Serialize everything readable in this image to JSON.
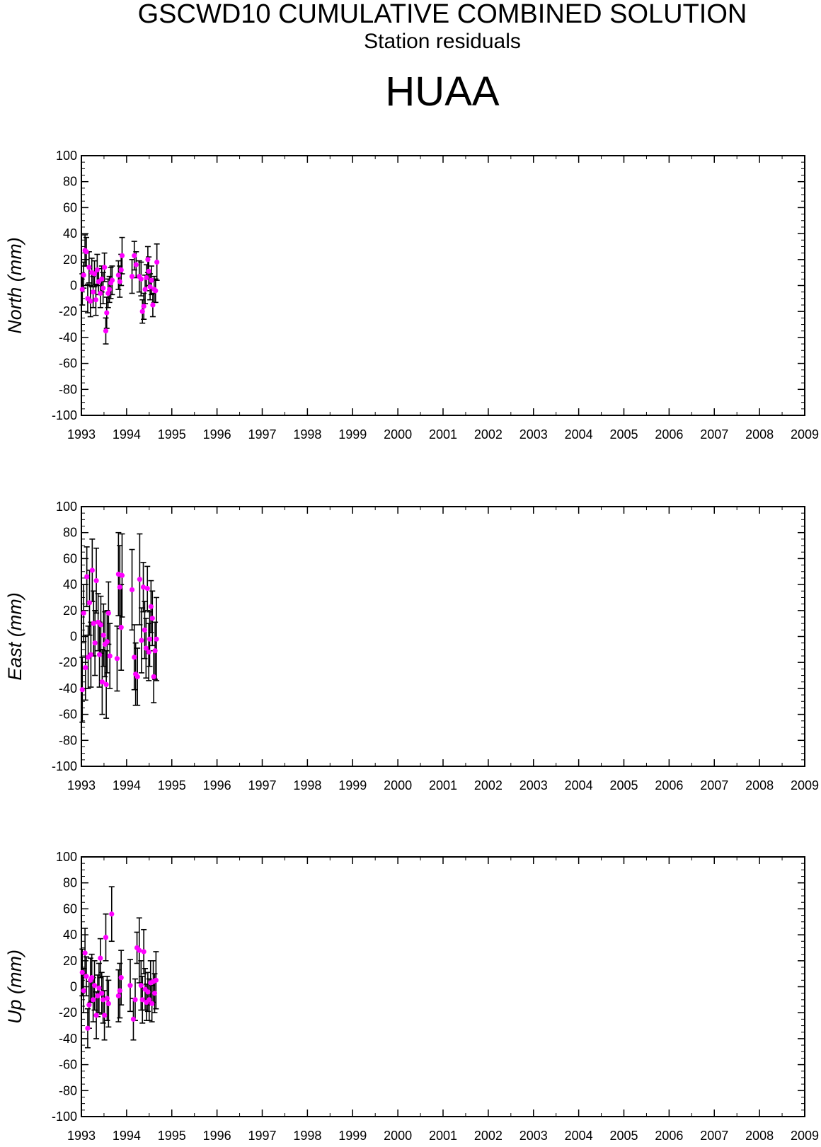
{
  "header": {
    "title": "GSCWD10 CUMULATIVE COMBINED SOLUTION",
    "subtitle": "Station residuals",
    "station": "HUAA"
  },
  "colors": {
    "point": "#ff00ff",
    "errorbar": "#000000",
    "axis": "#000000"
  },
  "chart_data": [
    {
      "type": "scatter",
      "ylabel": "North (mm)",
      "xlim": [
        1993,
        2009
      ],
      "ylim": [
        -100,
        100
      ],
      "xticks": [
        "1993",
        "1994",
        "1995",
        "1996",
        "1997",
        "1998",
        "1999",
        "2000",
        "2001",
        "2002",
        "2003",
        "2004",
        "2005",
        "2006",
        "2007",
        "2008",
        "2009"
      ],
      "yticks": [
        "100",
        "80",
        "60",
        "40",
        "20",
        "0",
        "-20",
        "-40",
        "-60",
        "-80",
        "-100"
      ],
      "grid": false,
      "points": [
        {
          "x": 1993.02,
          "y": -3,
          "err": 12
        },
        {
          "x": 1993.05,
          "y": 8,
          "err": 10
        },
        {
          "x": 1993.08,
          "y": 27,
          "err": 12
        },
        {
          "x": 1993.11,
          "y": 26,
          "err": 11
        },
        {
          "x": 1993.14,
          "y": -10,
          "err": 11
        },
        {
          "x": 1993.17,
          "y": 14,
          "err": 12
        },
        {
          "x": 1993.2,
          "y": -12,
          "err": 12
        },
        {
          "x": 1993.23,
          "y": 10,
          "err": 11
        },
        {
          "x": 1993.26,
          "y": -5,
          "err": 12
        },
        {
          "x": 1993.29,
          "y": 9,
          "err": 10
        },
        {
          "x": 1993.32,
          "y": -11,
          "err": 12
        },
        {
          "x": 1993.35,
          "y": 12,
          "err": 12
        },
        {
          "x": 1993.38,
          "y": 3,
          "err": 10
        },
        {
          "x": 1993.42,
          "y": -6,
          "err": 11
        },
        {
          "x": 1993.45,
          "y": 5,
          "err": 10
        },
        {
          "x": 1993.48,
          "y": -2,
          "err": 12
        },
        {
          "x": 1993.51,
          "y": 14,
          "err": 11
        },
        {
          "x": 1993.54,
          "y": -35,
          "err": 10
        },
        {
          "x": 1993.56,
          "y": -21,
          "err": 12
        },
        {
          "x": 1993.59,
          "y": -6,
          "err": 11
        },
        {
          "x": 1993.62,
          "y": -3,
          "err": 10
        },
        {
          "x": 1993.65,
          "y": 2,
          "err": 12
        },
        {
          "x": 1993.68,
          "y": 4,
          "err": 11
        },
        {
          "x": 1993.82,
          "y": 8,
          "err": 11
        },
        {
          "x": 1993.85,
          "y": 3,
          "err": 12
        },
        {
          "x": 1993.88,
          "y": 12,
          "err": 12
        },
        {
          "x": 1993.9,
          "y": 23,
          "err": 14
        },
        {
          "x": 1994.12,
          "y": 7,
          "err": 13
        },
        {
          "x": 1994.17,
          "y": 23,
          "err": 11
        },
        {
          "x": 1994.21,
          "y": 16,
          "err": 10
        },
        {
          "x": 1994.28,
          "y": 7,
          "err": 12
        },
        {
          "x": 1994.32,
          "y": 5,
          "err": 13
        },
        {
          "x": 1994.35,
          "y": -20,
          "err": 9
        },
        {
          "x": 1994.38,
          "y": -16,
          "err": 10
        },
        {
          "x": 1994.41,
          "y": -3,
          "err": 11
        },
        {
          "x": 1994.44,
          "y": 6,
          "err": 10
        },
        {
          "x": 1994.47,
          "y": 20,
          "err": 10
        },
        {
          "x": 1994.49,
          "y": 11,
          "err": 11
        },
        {
          "x": 1994.52,
          "y": -1,
          "err": 10
        },
        {
          "x": 1994.55,
          "y": 4,
          "err": 11
        },
        {
          "x": 1994.58,
          "y": -15,
          "err": 9
        },
        {
          "x": 1994.61,
          "y": -3,
          "err": 10
        },
        {
          "x": 1994.64,
          "y": -4,
          "err": 9
        },
        {
          "x": 1994.67,
          "y": 18,
          "err": 14
        }
      ]
    },
    {
      "type": "scatter",
      "ylabel": "East (mm)",
      "xlim": [
        1993,
        2009
      ],
      "ylim": [
        -100,
        100
      ],
      "xticks": [
        "1993",
        "1994",
        "1995",
        "1996",
        "1997",
        "1998",
        "1999",
        "2000",
        "2001",
        "2002",
        "2003",
        "2004",
        "2005",
        "2006",
        "2007",
        "2008",
        "2009"
      ],
      "yticks": [
        "100",
        "80",
        "60",
        "40",
        "20",
        "0",
        "-20",
        "-40",
        "-60",
        "-80",
        "-100"
      ],
      "grid": false,
      "points": [
        {
          "x": 1993.02,
          "y": -41,
          "err": 25
        },
        {
          "x": 1993.05,
          "y": 18,
          "err": 22
        },
        {
          "x": 1993.09,
          "y": -24,
          "err": 25
        },
        {
          "x": 1993.12,
          "y": 46,
          "err": 23
        },
        {
          "x": 1993.15,
          "y": -16,
          "err": 24
        },
        {
          "x": 1993.18,
          "y": 26,
          "err": 25
        },
        {
          "x": 1993.21,
          "y": -14,
          "err": 25
        },
        {
          "x": 1993.24,
          "y": 51,
          "err": 24
        },
        {
          "x": 1993.27,
          "y": 10,
          "err": 25
        },
        {
          "x": 1993.3,
          "y": -5,
          "err": 25
        },
        {
          "x": 1993.33,
          "y": 43,
          "err": 25
        },
        {
          "x": 1993.37,
          "y": 11,
          "err": 22
        },
        {
          "x": 1993.4,
          "y": -14,
          "err": 25
        },
        {
          "x": 1993.43,
          "y": 9,
          "err": 22
        },
        {
          "x": 1993.46,
          "y": -35,
          "err": 25
        },
        {
          "x": 1993.49,
          "y": 1,
          "err": 24
        },
        {
          "x": 1993.52,
          "y": -6,
          "err": 25
        },
        {
          "x": 1993.55,
          "y": -37,
          "err": 26
        },
        {
          "x": 1993.57,
          "y": -4,
          "err": 24
        },
        {
          "x": 1993.6,
          "y": 18,
          "err": 24
        },
        {
          "x": 1993.63,
          "y": -15,
          "err": 25
        },
        {
          "x": 1993.79,
          "y": -17,
          "err": 25
        },
        {
          "x": 1993.82,
          "y": 48,
          "err": 32
        },
        {
          "x": 1993.85,
          "y": 38,
          "err": 32
        },
        {
          "x": 1993.88,
          "y": 7,
          "err": 33
        },
        {
          "x": 1993.9,
          "y": 47,
          "err": 32
        },
        {
          "x": 1994.12,
          "y": 36,
          "err": 31
        },
        {
          "x": 1994.17,
          "y": -16,
          "err": 25
        },
        {
          "x": 1994.2,
          "y": -29,
          "err": 24
        },
        {
          "x": 1994.24,
          "y": -31,
          "err": 22
        },
        {
          "x": 1994.29,
          "y": 44,
          "err": 35
        },
        {
          "x": 1994.33,
          "y": -3,
          "err": 25
        },
        {
          "x": 1994.37,
          "y": 38,
          "err": 19
        },
        {
          "x": 1994.4,
          "y": 5,
          "err": 22
        },
        {
          "x": 1994.43,
          "y": -9,
          "err": 23
        },
        {
          "x": 1994.46,
          "y": 37,
          "err": 17
        },
        {
          "x": 1994.49,
          "y": -12,
          "err": 22
        },
        {
          "x": 1994.51,
          "y": -2,
          "err": 21
        },
        {
          "x": 1994.54,
          "y": 23,
          "err": 20
        },
        {
          "x": 1994.57,
          "y": 14,
          "err": 21
        },
        {
          "x": 1994.6,
          "y": -31,
          "err": 20
        },
        {
          "x": 1994.63,
          "y": -11,
          "err": 22
        },
        {
          "x": 1994.66,
          "y": -2,
          "err": 32
        }
      ]
    },
    {
      "type": "scatter",
      "ylabel": "Up (mm)",
      "xlim": [
        1993,
        2009
      ],
      "ylim": [
        -100,
        100
      ],
      "xticks": [
        "1993",
        "1994",
        "1995",
        "1996",
        "1997",
        "1998",
        "1999",
        "2000",
        "2001",
        "2002",
        "2003",
        "2004",
        "2005",
        "2006",
        "2007",
        "2008",
        "2009"
      ],
      "yticks": [
        "100",
        "80",
        "60",
        "40",
        "20",
        "0",
        "-20",
        "-40",
        "-60",
        "-80",
        "-100"
      ],
      "grid": false,
      "points": [
        {
          "x": 1993.02,
          "y": 11,
          "err": 18
        },
        {
          "x": 1993.05,
          "y": -3,
          "err": 17
        },
        {
          "x": 1993.08,
          "y": 26,
          "err": 19
        },
        {
          "x": 1993.11,
          "y": 8,
          "err": 15
        },
        {
          "x": 1993.14,
          "y": -32,
          "err": 15
        },
        {
          "x": 1993.17,
          "y": -14,
          "err": 18
        },
        {
          "x": 1993.2,
          "y": 5,
          "err": 17
        },
        {
          "x": 1993.23,
          "y": 7,
          "err": 18
        },
        {
          "x": 1993.26,
          "y": -10,
          "err": 17
        },
        {
          "x": 1993.29,
          "y": 1,
          "err": 19
        },
        {
          "x": 1993.33,
          "y": -22,
          "err": 18
        },
        {
          "x": 1993.36,
          "y": -7,
          "err": 16
        },
        {
          "x": 1993.39,
          "y": -1,
          "err": 19
        },
        {
          "x": 1993.42,
          "y": 22,
          "err": 15
        },
        {
          "x": 1993.45,
          "y": -5,
          "err": 16
        },
        {
          "x": 1993.48,
          "y": -10,
          "err": 18
        },
        {
          "x": 1993.51,
          "y": -22,
          "err": 19
        },
        {
          "x": 1993.54,
          "y": 38,
          "err": 18
        },
        {
          "x": 1993.57,
          "y": -9,
          "err": 17
        },
        {
          "x": 1993.6,
          "y": -13,
          "err": 18
        },
        {
          "x": 1993.67,
          "y": 56,
          "err": 21
        },
        {
          "x": 1993.82,
          "y": -7,
          "err": 20
        },
        {
          "x": 1993.85,
          "y": -3,
          "err": 21
        },
        {
          "x": 1993.88,
          "y": 7,
          "err": 21
        },
        {
          "x": 1994.08,
          "y": 1,
          "err": 20
        },
        {
          "x": 1994.15,
          "y": -25,
          "err": 16
        },
        {
          "x": 1994.19,
          "y": -10,
          "err": 16
        },
        {
          "x": 1994.23,
          "y": 30,
          "err": 12
        },
        {
          "x": 1994.28,
          "y": 28,
          "err": 25
        },
        {
          "x": 1994.32,
          "y": 1,
          "err": 19
        },
        {
          "x": 1994.35,
          "y": -10,
          "err": 18
        },
        {
          "x": 1994.38,
          "y": 27,
          "err": 17
        },
        {
          "x": 1994.41,
          "y": -2,
          "err": 16
        },
        {
          "x": 1994.44,
          "y": -12,
          "err": 14
        },
        {
          "x": 1994.47,
          "y": -4,
          "err": 15
        },
        {
          "x": 1994.5,
          "y": -10,
          "err": 16
        },
        {
          "x": 1994.53,
          "y": 3,
          "err": 17
        },
        {
          "x": 1994.56,
          "y": -13,
          "err": 14
        },
        {
          "x": 1994.59,
          "y": 4,
          "err": 16
        },
        {
          "x": 1994.62,
          "y": -5,
          "err": 15
        },
        {
          "x": 1994.65,
          "y": 5,
          "err": 22
        }
      ]
    }
  ]
}
